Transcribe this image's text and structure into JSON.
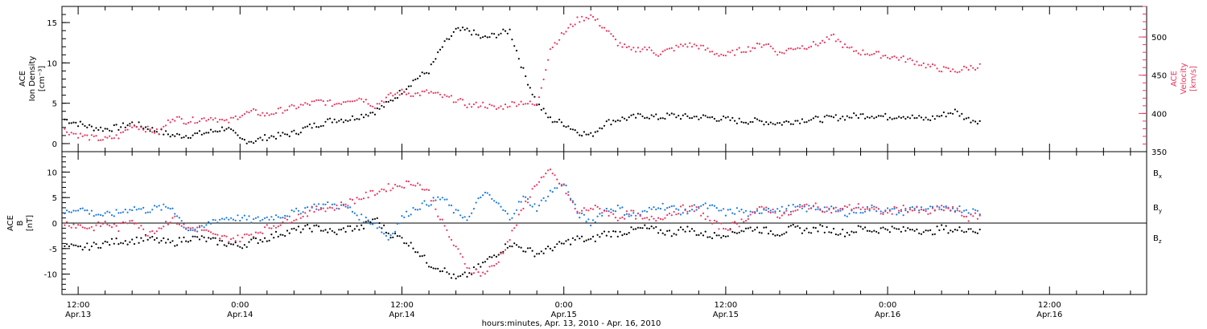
{
  "colors": {
    "black": "#000000",
    "pink": "#e8365e",
    "blue": "#1a78e0"
  },
  "x_axis_title": "hours:minutes, Apr. 13, 2010 - Apr. 16, 2010",
  "x_ticks": [
    {
      "time": "12:00",
      "date": "Apr.13",
      "hours": 12
    },
    {
      "time": "0:00",
      "date": "Apr.14",
      "hours": 24
    },
    {
      "time": "12:00",
      "date": "Apr.14",
      "hours": 36
    },
    {
      "time": "0:00",
      "date": "Apr.15",
      "hours": 48
    },
    {
      "time": "12:00",
      "date": "Apr.15",
      "hours": 60
    },
    {
      "time": "0:00",
      "date": "Apr.16",
      "hours": 72
    },
    {
      "time": "12:00",
      "date": "Apr.16",
      "hours": 84
    }
  ],
  "chart_data": [
    {
      "type": "scatter",
      "panel": "top",
      "xlim_hours": [
        10.8,
        91.2
      ],
      "ylabel": [
        "ACE",
        "Ion Density",
        "[cm⁻³]"
      ],
      "ylim": [
        -1,
        17
      ],
      "yticks": [
        0,
        5,
        10,
        15
      ],
      "ylabel_right": [
        "ACE",
        "Velocity",
        "[km/s]"
      ],
      "ylim_right": [
        350,
        540
      ],
      "yticks_right": [
        350,
        400,
        450,
        500
      ],
      "series": [
        {
          "color": "#000000",
          "axis": "left",
          "x_hours": [
            11,
            12,
            13,
            14,
            15,
            16,
            17,
            18,
            19,
            20,
            21,
            22,
            23,
            24,
            25,
            26,
            27,
            28,
            29,
            30,
            31,
            32,
            33,
            34,
            35,
            36,
            37,
            38,
            39,
            40,
            41,
            42,
            43,
            44,
            45,
            46,
            47,
            48,
            49,
            50,
            51,
            52,
            53,
            54,
            55,
            56,
            57,
            58,
            59,
            60,
            61,
            62,
            63,
            64,
            65,
            66,
            67,
            68,
            69,
            70,
            71,
            72,
            73,
            74,
            75,
            76,
            77,
            78,
            79
          ],
          "values": [
            3,
            2.5,
            2,
            1.8,
            2,
            2.5,
            2,
            1.5,
            1,
            1,
            1.2,
            1.5,
            2,
            0.5,
            0.3,
            0.8,
            1,
            1.3,
            2,
            2.5,
            3,
            3,
            3.5,
            4,
            5,
            6.5,
            8,
            9,
            12,
            14,
            14,
            13,
            13.5,
            14,
            9,
            5,
            3,
            2.5,
            1.5,
            1,
            2.5,
            3,
            3.2,
            3.5,
            3.2,
            3.5,
            3.3,
            3.3,
            3.2,
            3,
            2.8,
            2.8,
            2.7,
            2.5,
            2.8,
            3,
            3,
            3.2,
            3.3,
            3.5,
            3.5,
            3.3,
            3.5,
            3.2,
            3,
            3.5,
            4,
            3,
            2.8
          ]
        },
        {
          "color": "#e8365e",
          "axis": "right",
          "x_hours": [
            11,
            12,
            13,
            14,
            15,
            16,
            17,
            18,
            19,
            20,
            21,
            22,
            23,
            24,
            25,
            26,
            27,
            28,
            29,
            30,
            31,
            32,
            33,
            34,
            35,
            36,
            37,
            38,
            39,
            40,
            41,
            42,
            43,
            44,
            45,
            46,
            47,
            48,
            49,
            50,
            51,
            52,
            53,
            54,
            55,
            56,
            57,
            58,
            59,
            60,
            61,
            62,
            63,
            64,
            65,
            66,
            67,
            68,
            69,
            70,
            71,
            72,
            73,
            74,
            75,
            76,
            77,
            78,
            79
          ],
          "values": [
            378,
            372,
            368,
            366,
            370,
            385,
            380,
            375,
            395,
            390,
            392,
            395,
            388,
            398,
            402,
            398,
            404,
            408,
            412,
            416,
            412,
            418,
            420,
            410,
            422,
            428,
            425,
            428,
            422,
            418,
            410,
            412,
            406,
            412,
            415,
            410,
            485,
            505,
            522,
            528,
            512,
            492,
            482,
            486,
            478,
            484,
            490,
            488,
            480,
            476,
            482,
            486,
            492,
            478,
            486,
            488,
            492,
            500,
            485,
            480,
            478,
            475,
            472,
            468,
            462,
            458,
            455,
            460,
            462
          ]
        }
      ]
    },
    {
      "type": "scatter",
      "panel": "bottom",
      "xlim_hours": [
        10.8,
        91.2
      ],
      "ylabel": [
        "ACE",
        "B",
        "[nT]"
      ],
      "ylim": [
        -14,
        14
      ],
      "yticks": [
        -10,
        -5,
        0,
        5,
        10
      ],
      "legend": {
        "position": "right",
        "items": [
          {
            "label": "B",
            "sub": "x",
            "color": "#000000"
          },
          {
            "label": "B",
            "sub": "y",
            "color": "#1a78e0"
          },
          {
            "label": "B",
            "sub": "z",
            "color": "#e8365e"
          }
        ]
      },
      "series": [
        {
          "name": "Bx",
          "color": "#000000",
          "x_hours": [
            11,
            12,
            13,
            14,
            15,
            16,
            17,
            18,
            19,
            20,
            21,
            22,
            23,
            24,
            25,
            26,
            27,
            28,
            29,
            30,
            31,
            32,
            33,
            34,
            35,
            36,
            37,
            38,
            39,
            40,
            41,
            42,
            43,
            44,
            45,
            46,
            47,
            48,
            49,
            50,
            51,
            52,
            53,
            54,
            55,
            56,
            57,
            58,
            59,
            60,
            61,
            62,
            63,
            64,
            65,
            66,
            67,
            68,
            69,
            70,
            71,
            72,
            73,
            74,
            75,
            76,
            77,
            78,
            79
          ],
          "values": [
            -4.5,
            -5,
            -4.5,
            -4,
            -3.5,
            -3.5,
            -3,
            -3.5,
            -4,
            -3,
            -3,
            -3.5,
            -4,
            -4.5,
            -3.5,
            -3,
            -2,
            -1.5,
            -1,
            -1,
            -2,
            -1,
            -1,
            1,
            -2,
            -3,
            -5,
            -8,
            -9,
            -11,
            -10,
            -8,
            -6,
            -4,
            -5,
            -6,
            -5,
            -4,
            -3,
            -3.5,
            -2,
            -2,
            -1.5,
            -1,
            -1.5,
            -2,
            -1,
            -2,
            -2.5,
            -2,
            -1.5,
            -1,
            -1.5,
            -2,
            -1,
            -1.5,
            -1,
            -1.5,
            -2,
            -1,
            -1.5,
            -1,
            -1.5,
            -1,
            -2,
            -1,
            -1.5,
            -1,
            -2
          ]
        },
        {
          "name": "By",
          "color": "#1a78e0",
          "x_hours": [
            11,
            12,
            13,
            14,
            15,
            16,
            17,
            18,
            19,
            20,
            21,
            22,
            23,
            24,
            25,
            26,
            27,
            28,
            29,
            30,
            31,
            32,
            33,
            34,
            35,
            36,
            37,
            38,
            39,
            40,
            41,
            42,
            43,
            44,
            45,
            46,
            47,
            48,
            49,
            50,
            51,
            52,
            53,
            54,
            55,
            56,
            57,
            58,
            59,
            60,
            61,
            62,
            63,
            64,
            65,
            66,
            67,
            68,
            69,
            70,
            71,
            72,
            73,
            74,
            75,
            76,
            77,
            78,
            79
          ],
          "values": [
            2,
            3,
            2,
            1.5,
            2,
            3,
            2.5,
            3,
            3,
            -1,
            -1.5,
            0.5,
            1,
            1,
            0.5,
            1,
            1.5,
            2,
            3,
            3.5,
            3.5,
            3,
            1,
            0,
            -3,
            1,
            3,
            4,
            5,
            2,
            1,
            6,
            4,
            1,
            5,
            3,
            6,
            8,
            2,
            0,
            2.5,
            3,
            1.5,
            2,
            3.5,
            3,
            2,
            3.5,
            3,
            2,
            2.5,
            1.5,
            3,
            2.5,
            3,
            2.8,
            3,
            2.5,
            2,
            2.5,
            3,
            2.5,
            2,
            3,
            2.8,
            2.5,
            3,
            2.5,
            2
          ]
        },
        {
          "name": "Bz",
          "color": "#e8365e",
          "x_hours": [
            11,
            12,
            13,
            14,
            15,
            16,
            17,
            18,
            19,
            20,
            21,
            22,
            23,
            24,
            25,
            26,
            27,
            28,
            29,
            30,
            31,
            32,
            33,
            34,
            35,
            36,
            37,
            38,
            39,
            40,
            41,
            42,
            43,
            44,
            45,
            46,
            47,
            48,
            49,
            50,
            51,
            52,
            53,
            54,
            55,
            56,
            57,
            58,
            59,
            60,
            61,
            62,
            63,
            64,
            65,
            66,
            67,
            68,
            69,
            70,
            71,
            72,
            73,
            74,
            75,
            76,
            77,
            78,
            79
          ],
          "values": [
            0,
            -0.5,
            -1,
            0,
            -1,
            1,
            -2,
            -1,
            1,
            -1,
            -1,
            -2.5,
            -3,
            -3,
            -2,
            -1,
            0,
            1,
            2,
            3,
            3,
            4,
            5,
            6,
            7,
            7.5,
            8,
            6,
            0,
            -5,
            -9,
            -10,
            -8,
            -3,
            3,
            8,
            10,
            7,
            2,
            3,
            2.5,
            1,
            2,
            0.5,
            1,
            2,
            3,
            2.5,
            0,
            -1,
            0,
            2,
            3,
            1.5,
            2,
            3.5,
            3,
            2.5,
            3,
            3.2,
            2.5,
            2,
            3,
            2.5,
            2,
            3,
            2.5,
            1,
            1.5
          ]
        }
      ]
    }
  ]
}
